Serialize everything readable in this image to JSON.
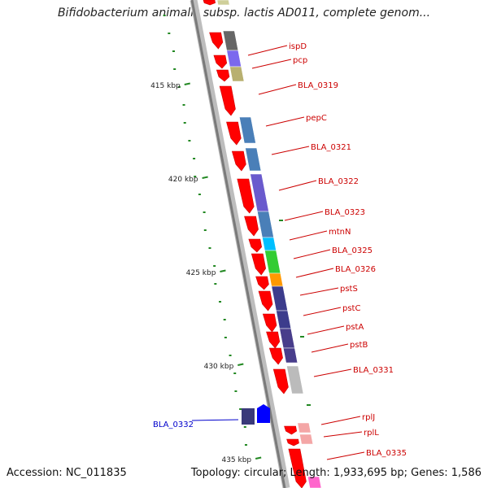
{
  "title": "Bifidobacterium animalis subsp. lactis AD011, complete genom...",
  "footer": {
    "accession": "Accession: NC_011835",
    "topology": "Topology: circular; Length: 1,933,695 bp; Genes: 1,586"
  },
  "kbp_ticks": [
    {
      "label": "415 kbp"
    },
    {
      "label": "420 kbp"
    },
    {
      "label": "425 kbp"
    },
    {
      "label": "430 kbp"
    },
    {
      "label": "435 kbp"
    }
  ],
  "gene_labels": [
    {
      "name": "ispD",
      "color": "#cc0000"
    },
    {
      "name": "pcp",
      "color": "#cc0000"
    },
    {
      "name": "BLA_0319",
      "color": "#cc0000"
    },
    {
      "name": "pepC",
      "color": "#cc0000"
    },
    {
      "name": "BLA_0321",
      "color": "#cc0000"
    },
    {
      "name": "BLA_0322",
      "color": "#cc0000"
    },
    {
      "name": "BLA_0323",
      "color": "#cc0000"
    },
    {
      "name": "mtnN",
      "color": "#cc0000"
    },
    {
      "name": "BLA_0325",
      "color": "#cc0000"
    },
    {
      "name": "BLA_0326",
      "color": "#cc0000"
    },
    {
      "name": "pstS",
      "color": "#cc0000"
    },
    {
      "name": "pstC",
      "color": "#cc0000"
    },
    {
      "name": "pstA",
      "color": "#cc0000"
    },
    {
      "name": "pstB",
      "color": "#cc0000"
    },
    {
      "name": "BLA_0331",
      "color": "#cc0000"
    },
    {
      "name": "rplJ",
      "color": "#cc0000"
    },
    {
      "name": "rplL",
      "color": "#cc0000"
    },
    {
      "name": "BLA_0335",
      "color": "#cc0000"
    },
    {
      "name": "BLA_0332",
      "color": "#0000cc"
    }
  ],
  "colors": {
    "forward_gene": "#ff0000",
    "reverse_gene": "#0000ff",
    "backbone": "#999999",
    "gc_dots": "#228822"
  }
}
